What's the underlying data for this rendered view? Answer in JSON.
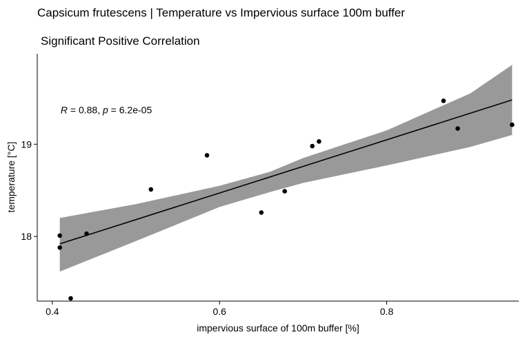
{
  "chart_data": {
    "type": "scatter",
    "title": "Capsicum frutescens | Temperature vs Impervious surface 100m buffer",
    "subtitle": "Significant Positive Correlation",
    "xlabel": "impervious surface of 100m buffer [%]",
    "ylabel": "temperature [°C]",
    "xlim": [
      0.382,
      0.958
    ],
    "ylim": [
      17.3,
      19.98
    ],
    "x_ticks": [
      0.4,
      0.6,
      0.8
    ],
    "x_tick_labels": [
      "0.4",
      "0.6",
      "0.8"
    ],
    "y_ticks": [
      18,
      19
    ],
    "y_tick_labels": [
      "18",
      "19"
    ],
    "grid": false,
    "legend": "none",
    "points": [
      {
        "x": 0.409,
        "y": 18.01
      },
      {
        "x": 0.409,
        "y": 17.88
      },
      {
        "x": 0.422,
        "y": 17.33
      },
      {
        "x": 0.441,
        "y": 18.03
      },
      {
        "x": 0.518,
        "y": 18.51
      },
      {
        "x": 0.585,
        "y": 18.88
      },
      {
        "x": 0.65,
        "y": 18.26
      },
      {
        "x": 0.678,
        "y": 18.49
      },
      {
        "x": 0.711,
        "y": 18.98
      },
      {
        "x": 0.719,
        "y": 19.03
      },
      {
        "x": 0.868,
        "y": 19.47
      },
      {
        "x": 0.885,
        "y": 19.17
      },
      {
        "x": 0.95,
        "y": 19.21
      }
    ],
    "regression": {
      "x": [
        0.409,
        0.95
      ],
      "y": [
        17.92,
        19.48
      ]
    },
    "confidence_band": {
      "x": [
        0.409,
        0.5,
        0.6,
        0.66,
        0.7,
        0.8,
        0.9,
        0.95
      ],
      "upper": [
        18.2,
        18.35,
        18.55,
        18.7,
        18.85,
        19.15,
        19.55,
        19.86
      ],
      "lower": [
        17.62,
        17.95,
        18.32,
        18.48,
        18.58,
        18.77,
        18.97,
        19.1
      ]
    },
    "annotation": {
      "r_label": "R",
      "r_value": " = 0.88, ",
      "p_label": "p",
      "p_value": " = 6.2e-05",
      "x": 0.41,
      "y": 19.37
    },
    "colors": {
      "points": "#000000",
      "line": "#000000",
      "band": "#999999",
      "axis": "#000000"
    }
  }
}
